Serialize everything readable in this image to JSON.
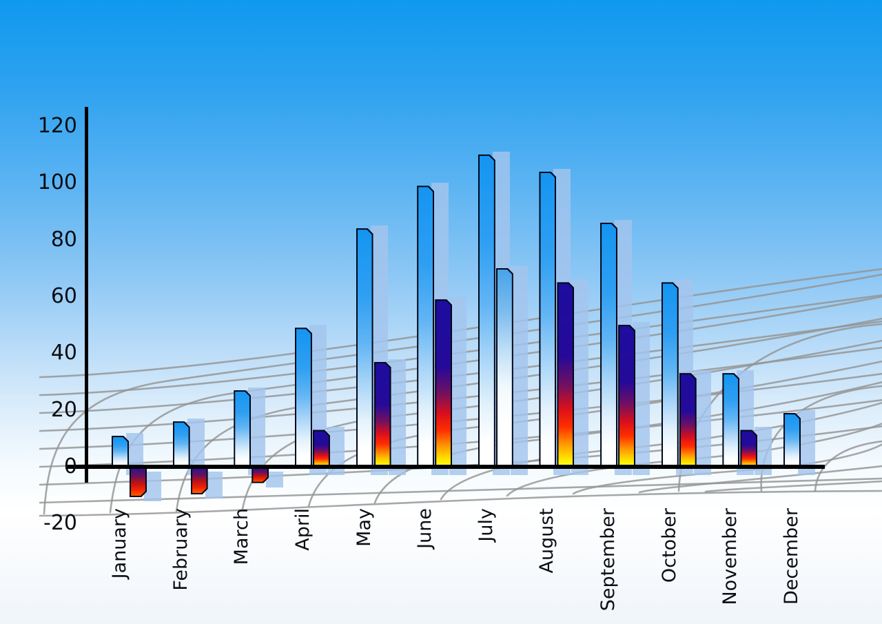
{
  "chart_data": {
    "type": "bar",
    "title": "",
    "xlabel": "",
    "ylabel": "",
    "categories": [
      "January",
      "February",
      "March",
      "April",
      "May",
      "June",
      "July",
      "August",
      "September",
      "October",
      "November",
      "December"
    ],
    "series": [
      {
        "name": "primary-blue",
        "values": [
          11,
          16,
          27,
          49,
          84,
          99,
          110,
          104,
          86,
          65,
          33,
          19
        ]
      },
      {
        "name": "secondary",
        "values": [
          -10,
          -9,
          -5,
          13,
          37,
          59,
          70,
          65,
          50,
          33,
          13,
          null
        ],
        "variants": [
          "fire",
          "fire",
          "fire",
          "fire",
          "fire",
          "fire",
          "blue",
          "fire",
          "fire",
          "fire",
          "fire",
          null
        ]
      }
    ],
    "y_ticks": [
      120,
      100,
      80,
      60,
      40,
      20,
      0,
      -20
    ],
    "ylim": [
      -20,
      120
    ],
    "legend": "none",
    "grid": "perspective-floor-mesh"
  },
  "colors": {
    "sky_top": "#0f99ee",
    "sky_bottom": "#f0f5fa",
    "bar_blue_top": "#1495f1",
    "bar_pale_top": "#47a3ea",
    "fire_navy": "#1d0d9e",
    "fire_red": "#f22500",
    "fire_yellow": "#fff200",
    "bar_outline": "#010718",
    "echo_bar": "#a3c5ed",
    "mesh_line": "#949494",
    "axis": "#000000",
    "label_text": "#0a0e14"
  }
}
